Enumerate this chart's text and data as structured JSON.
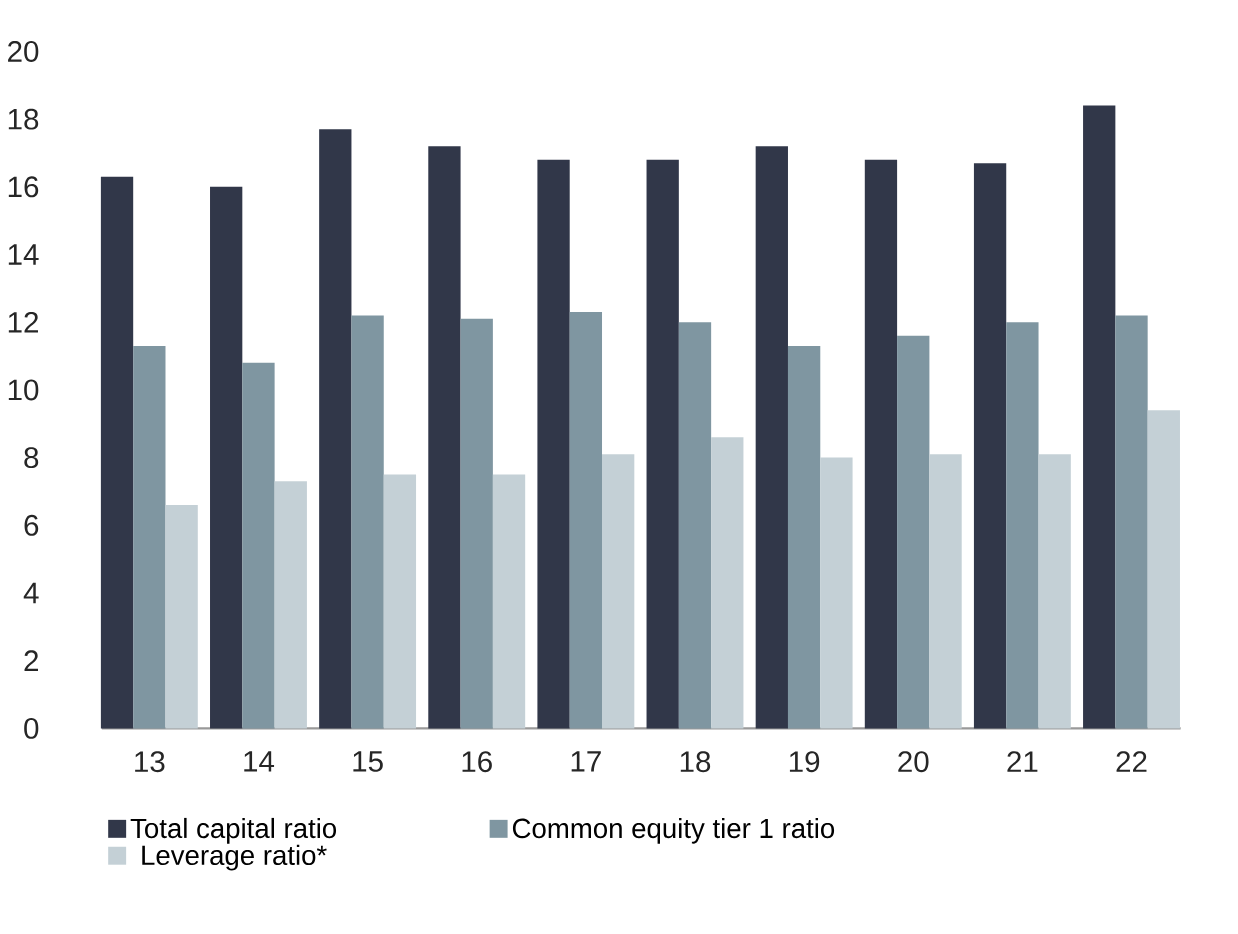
{
  "chart_data": {
    "type": "bar",
    "categories": [
      "13",
      "14",
      "15",
      "16",
      "17",
      "18",
      "19",
      "20",
      "21",
      "22"
    ],
    "series": [
      {
        "name": "Total capital ratio",
        "color": "#313749",
        "values": [
          16.3,
          16.0,
          17.7,
          17.2,
          16.8,
          16.8,
          17.2,
          16.8,
          16.7,
          18.4
        ]
      },
      {
        "name": "Common equity tier 1 ratio",
        "color": "#7f96a1",
        "values": [
          11.3,
          10.8,
          12.2,
          12.1,
          12.3,
          12.0,
          11.3,
          11.6,
          12.0,
          12.2
        ]
      },
      {
        "name": "Leverage ratio*",
        "color": "#c4d0d6",
        "values": [
          6.6,
          7.3,
          7.5,
          7.5,
          8.1,
          8.6,
          8.0,
          8.1,
          8.1,
          9.4
        ]
      }
    ],
    "ylim": [
      0,
      20
    ],
    "yticks": [
      0,
      2,
      4,
      6,
      8,
      10,
      12,
      14,
      16,
      18,
      20
    ],
    "grid": false,
    "legend": "bottom"
  }
}
